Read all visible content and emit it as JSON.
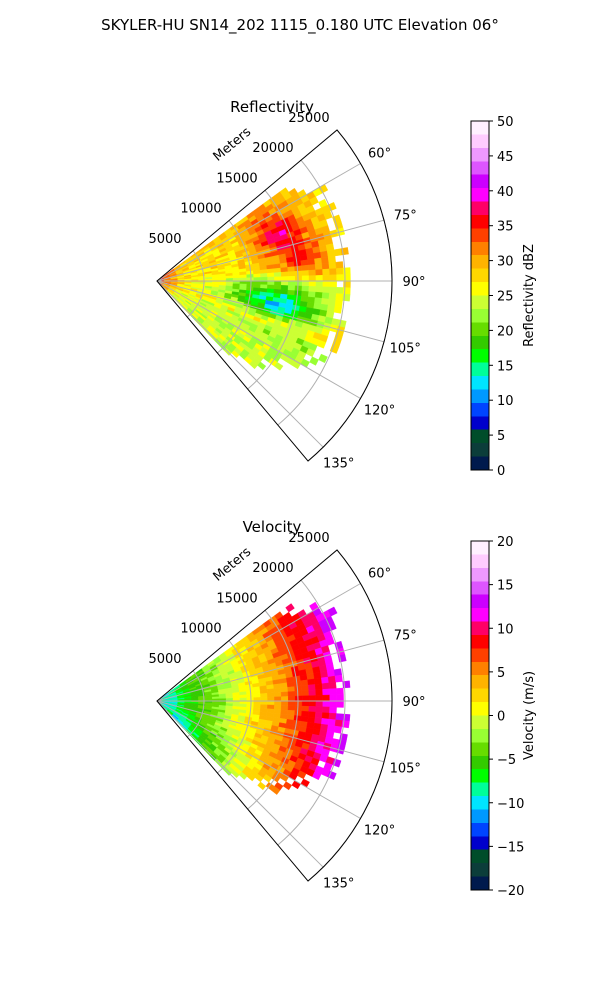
{
  "title": "SKYLER-HU  SN14_202  1115_0.180 UTC Elevation 06°",
  "chart_data": [
    {
      "type": "polar-sector",
      "title": "Reflectivity",
      "radial_label": "Meters",
      "r_ticks": [
        5000,
        10000,
        15000,
        20000,
        25000
      ],
      "r_tick_labels": [
        "5000",
        "10000",
        "15000",
        "20000",
        "25000"
      ],
      "rmax": 25000,
      "theta_range_deg": [
        50,
        140
      ],
      "theta_ticks": [
        60,
        75,
        90,
        105,
        120,
        135
      ],
      "theta_tick_labels": [
        "60°",
        "75°",
        "90°",
        "105°",
        "120°",
        "135°"
      ],
      "grid": true,
      "colorbar": {
        "label": "Reflectivity dBZ",
        "range": [
          0,
          50
        ],
        "ticks": [
          0,
          5,
          10,
          15,
          20,
          25,
          30,
          35,
          40,
          45,
          50
        ],
        "tick_labels": [
          "0",
          "5",
          "10",
          "15",
          "20",
          "25",
          "30",
          "35",
          "40",
          "45",
          "50"
        ]
      }
    },
    {
      "type": "polar-sector",
      "title": "Velocity",
      "radial_label": "Meters",
      "r_ticks": [
        5000,
        10000,
        15000,
        20000,
        25000
      ],
      "r_tick_labels": [
        "5000",
        "10000",
        "15000",
        "20000",
        "25000"
      ],
      "rmax": 25000,
      "theta_range_deg": [
        50,
        140
      ],
      "theta_ticks": [
        60,
        75,
        90,
        105,
        120,
        135
      ],
      "theta_tick_labels": [
        "60°",
        "75°",
        "90°",
        "105°",
        "120°",
        "135°"
      ],
      "grid": true,
      "colorbar": {
        "label": "Velocity (m/s)",
        "range": [
          -20,
          20
        ],
        "ticks": [
          -20,
          -15,
          -10,
          -5,
          0,
          5,
          10,
          15,
          20
        ],
        "tick_labels": [
          "−20",
          "−15",
          "−10",
          "−5",
          "0",
          "5",
          "10",
          "15",
          "20"
        ]
      }
    }
  ],
  "colormap": [
    "#001a4d",
    "#0b3d3a",
    "#004d2a",
    "#0000cc",
    "#0044ff",
    "#0099ff",
    "#00e5ff",
    "#00ff99",
    "#00ff00",
    "#33cc00",
    "#66dd00",
    "#99ff33",
    "#ccff33",
    "#ffff00",
    "#ffd700",
    "#ffb300",
    "#ff8000",
    "#ff4000",
    "#ff0000",
    "#ff0066",
    "#ff00ff",
    "#cc00ff",
    "#dd55ff",
    "#ee99ff",
    "#ffccff",
    "#fff0ff"
  ]
}
